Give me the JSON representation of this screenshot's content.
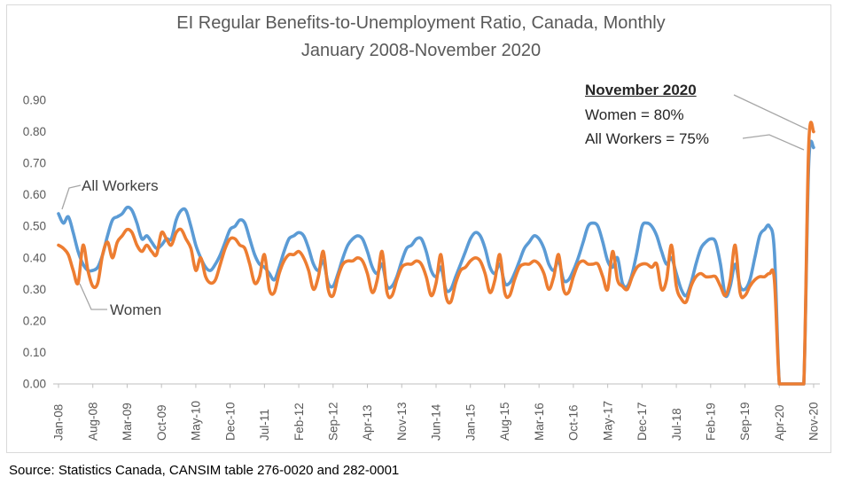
{
  "title": {
    "line1": "EI Regular Benefits-to-Unemployment Ratio, Canada, Monthly",
    "line2": "January 2008-November 2020"
  },
  "annotation": {
    "heading": "November 2020",
    "women_line": "Women = 80%",
    "all_workers_line": "All Workers = 75%"
  },
  "source": {
    "text": "Source: Statistics Canada, CANSIM table 276-0020 and 282-0001"
  },
  "colors": {
    "all_workers": "#5B9BD5",
    "women": "#ED7D31",
    "leader_line": "#A6A6A6",
    "axis_line": "#BFBFBF",
    "tick_text": "#595959",
    "title_text": "#595959",
    "annotation_text": "#262626",
    "frame_border": "#D9D9D9"
  },
  "chart_data": {
    "type": "line",
    "title": "EI Regular Benefits-to-Unemployment Ratio, Canada, Monthly January 2008-November 2020",
    "frequency": "monthly",
    "start_month": "Jan-08",
    "end_month": "Nov-20",
    "x_tick_interval_months": 7,
    "x_tick_labels": [
      "Jan-08",
      "Aug-08",
      "Mar-09",
      "Oct-09",
      "May-10",
      "Dec-10",
      "Jul-11",
      "Feb-12",
      "Sep-12",
      "Apr-13",
      "Nov-13",
      "Jun-14",
      "Jan-15",
      "Aug-15",
      "Mar-16",
      "Oct-16",
      "May-17",
      "Dec-17",
      "Jul-18",
      "Feb-19",
      "Sep-19",
      "Apr-20",
      "Nov-20"
    ],
    "y_ticks": [
      "0.00",
      "0.10",
      "0.20",
      "0.30",
      "0.40",
      "0.50",
      "0.60",
      "0.70",
      "0.80",
      "0.90"
    ],
    "ylim": [
      0.0,
      0.9
    ],
    "grid": false,
    "legend_position": "none",
    "series_labels_on_chart": {
      "all_workers": "All Workers",
      "women": "Women"
    },
    "highlight": {
      "month": "Nov-20",
      "women": 0.8,
      "all_workers": 0.75
    },
    "series": [
      {
        "name": "All Workers",
        "color": "#5B9BD5",
        "values": [
          0.54,
          0.51,
          0.53,
          0.48,
          0.42,
          0.38,
          0.36,
          0.36,
          0.37,
          0.41,
          0.47,
          0.52,
          0.53,
          0.54,
          0.56,
          0.55,
          0.51,
          0.46,
          0.47,
          0.45,
          0.43,
          0.44,
          0.46,
          0.46,
          0.52,
          0.55,
          0.55,
          0.5,
          0.44,
          0.4,
          0.37,
          0.36,
          0.38,
          0.41,
          0.45,
          0.49,
          0.5,
          0.52,
          0.51,
          0.46,
          0.41,
          0.38,
          0.37,
          0.35,
          0.33,
          0.37,
          0.42,
          0.46,
          0.47,
          0.48,
          0.47,
          0.43,
          0.38,
          0.36,
          0.39,
          0.32,
          0.31,
          0.35,
          0.4,
          0.44,
          0.46,
          0.47,
          0.46,
          0.42,
          0.37,
          0.35,
          0.38,
          0.31,
          0.31,
          0.34,
          0.39,
          0.43,
          0.44,
          0.46,
          0.46,
          0.42,
          0.36,
          0.34,
          0.37,
          0.3,
          0.3,
          0.34,
          0.38,
          0.42,
          0.46,
          0.48,
          0.47,
          0.43,
          0.37,
          0.35,
          0.38,
          0.32,
          0.32,
          0.35,
          0.39,
          0.43,
          0.45,
          0.47,
          0.46,
          0.43,
          0.38,
          0.36,
          0.39,
          0.33,
          0.33,
          0.36,
          0.4,
          0.45,
          0.5,
          0.51,
          0.5,
          0.45,
          0.39,
          0.37,
          0.4,
          0.32,
          0.31,
          0.35,
          0.42,
          0.5,
          0.51,
          0.5,
          0.47,
          0.42,
          0.38,
          0.4,
          0.35,
          0.3,
          0.28,
          0.32,
          0.38,
          0.43,
          0.45,
          0.46,
          0.45,
          0.38,
          0.28,
          0.31,
          0.38,
          0.31,
          0.3,
          0.33,
          0.4,
          0.47,
          0.49,
          0.5,
          0.42,
          0.0,
          0.0,
          0.0,
          0.0,
          0.0,
          0.0,
          0.7,
          0.75
        ]
      },
      {
        "name": "Women",
        "color": "#ED7D31",
        "values": [
          0.44,
          0.43,
          0.41,
          0.36,
          0.32,
          0.44,
          0.36,
          0.31,
          0.32,
          0.41,
          0.45,
          0.4,
          0.45,
          0.47,
          0.49,
          0.48,
          0.44,
          0.42,
          0.44,
          0.42,
          0.41,
          0.48,
          0.46,
          0.44,
          0.48,
          0.49,
          0.46,
          0.43,
          0.36,
          0.4,
          0.34,
          0.32,
          0.33,
          0.38,
          0.43,
          0.46,
          0.46,
          0.44,
          0.43,
          0.38,
          0.32,
          0.34,
          0.41,
          0.3,
          0.29,
          0.35,
          0.39,
          0.41,
          0.41,
          0.42,
          0.4,
          0.36,
          0.3,
          0.34,
          0.42,
          0.3,
          0.28,
          0.34,
          0.38,
          0.39,
          0.39,
          0.4,
          0.39,
          0.35,
          0.29,
          0.33,
          0.42,
          0.29,
          0.28,
          0.33,
          0.37,
          0.38,
          0.38,
          0.39,
          0.38,
          0.34,
          0.28,
          0.32,
          0.41,
          0.28,
          0.26,
          0.32,
          0.36,
          0.37,
          0.39,
          0.4,
          0.39,
          0.35,
          0.29,
          0.33,
          0.41,
          0.29,
          0.28,
          0.33,
          0.37,
          0.38,
          0.38,
          0.39,
          0.38,
          0.35,
          0.3,
          0.34,
          0.41,
          0.3,
          0.29,
          0.34,
          0.38,
          0.39,
          0.38,
          0.38,
          0.38,
          0.34,
          0.3,
          0.42,
          0.33,
          0.31,
          0.3,
          0.34,
          0.37,
          0.38,
          0.38,
          0.37,
          0.38,
          0.3,
          0.33,
          0.44,
          0.31,
          0.27,
          0.26,
          0.31,
          0.34,
          0.35,
          0.34,
          0.34,
          0.34,
          0.31,
          0.28,
          0.33,
          0.44,
          0.29,
          0.28,
          0.31,
          0.33,
          0.34,
          0.34,
          0.35,
          0.33,
          0.0,
          0.0,
          0.0,
          0.0,
          0.0,
          0.0,
          0.76,
          0.8
        ]
      }
    ]
  }
}
